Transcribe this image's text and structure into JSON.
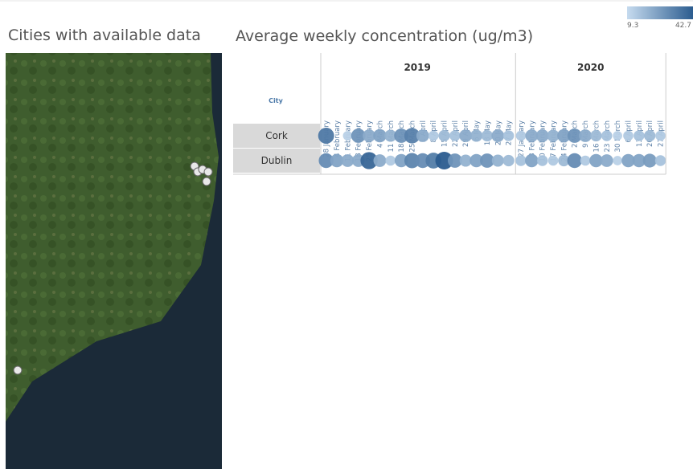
{
  "map": {
    "title": "Cities with available data"
  },
  "chart_data": {
    "type": "bubble-grid",
    "title": "Average weekly concentration  (ug/m3)",
    "row_header": "City",
    "color_scale": {
      "min": 9.3,
      "max": 42.7,
      "colors": [
        "#c6dbef",
        "#2b5c8f"
      ]
    },
    "groups": [
      {
        "label": "2019",
        "categories": [
          "28 January",
          "4 February",
          "11 February",
          "18 February",
          "25 February",
          "4 March",
          "11 March",
          "18 March",
          "25 March",
          "1 April",
          "8 April",
          "15 April",
          "22 April",
          "29 April",
          "6 May",
          "13 May",
          "20 May",
          "27 May"
        ]
      },
      {
        "label": "2020",
        "categories": [
          "27 January",
          "3 February",
          "10 February",
          "17 February",
          "24 February",
          "2 March",
          "9 March",
          "16 March",
          "23 March",
          "30 March",
          "6 April",
          "13 April",
          "20 April",
          "27 April"
        ]
      }
    ],
    "series": [
      {
        "name": "Cork",
        "values": [
          [
            35,
            null,
            12,
            28,
            22,
            24,
            20,
            28,
            33,
            22,
            14,
            18,
            16,
            22,
            20,
            18,
            22,
            16
          ],
          [
            14,
            22,
            22,
            20,
            24,
            28,
            22,
            18,
            16,
            12,
            14,
            16,
            18,
            14
          ]
        ]
      },
      {
        "name": "Dublin",
        "values": [
          [
            30,
            24,
            22,
            22,
            40,
            22,
            14,
            24,
            32,
            30,
            34,
            42.7,
            28,
            20,
            24,
            28,
            20,
            18
          ],
          [
            16,
            24,
            16,
            14,
            18,
            30,
            14,
            24,
            22,
            12,
            24,
            24,
            26,
            16
          ]
        ]
      }
    ]
  }
}
